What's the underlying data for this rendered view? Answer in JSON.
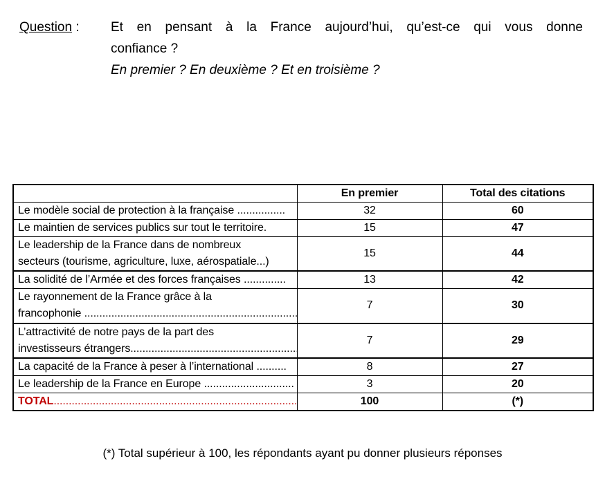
{
  "question": {
    "label": "Question",
    "colon": " :",
    "line1": "Et en pensant à la France aujourd’hui, qu’est-ce qui vous donne",
    "line2": "confiance ?",
    "line3": "En premier ? En deuxième ? Et en troisième ?"
  },
  "table": {
    "headers": {
      "col1": "",
      "col2": "En premier",
      "col3": "Total des citations"
    },
    "rows": [
      {
        "lines": [
          "Le modèle social de protection à la française ................"
        ],
        "en_premier": "32",
        "total": "60"
      },
      {
        "lines": [
          "Le maintien de services publics sur tout le territoire."
        ],
        "en_premier": "15",
        "total": "47"
      },
      {
        "lines": [
          "Le leadership de la France dans de nombreux",
          "secteurs (tourisme, agriculture, luxe, aérospatiale...)"
        ],
        "en_premier": "15",
        "total": "44",
        "thick_bottom": true
      },
      {
        "lines": [
          "La solidité de l’Armée et des forces françaises .............."
        ],
        "en_premier": "13",
        "total": "42"
      },
      {
        "lines": [
          "Le rayonnement de la France grâce à la",
          "francophonie ......................................................................................"
        ],
        "en_premier": "7",
        "total": "30",
        "thick_bottom": true
      },
      {
        "lines": [
          "L’attractivité de notre pays de la part des",
          "investisseurs étrangers....................................................................."
        ],
        "en_premier": "7",
        "total": "29",
        "thick_bottom": true
      },
      {
        "lines": [
          "La capacité de la France à peser à l’international .........."
        ],
        "en_premier": "8",
        "total": "27"
      },
      {
        "lines": [
          "Le leadership de la France en Europe .............................."
        ],
        "en_premier": "3",
        "total": "20"
      },
      {
        "is_total": true,
        "label": "TOTAL",
        "leader": "..................................................................................................................",
        "en_premier": "100",
        "total": "(*)"
      }
    ]
  },
  "footnote": "(*) Total supérieur à 100, les répondants ayant pu donner plusieurs réponses",
  "colors": {
    "accent_red": "#C00000",
    "border": "#000000",
    "text": "#000000",
    "background": "#FFFFFF"
  }
}
